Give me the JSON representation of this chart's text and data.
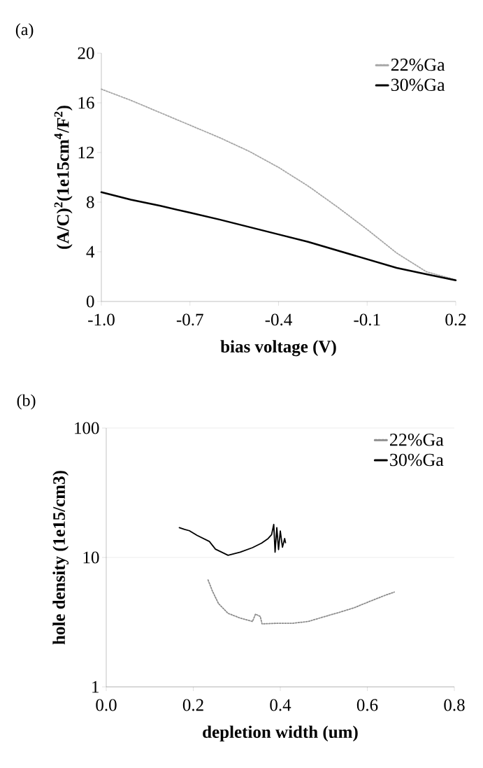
{
  "chart_data": [
    {
      "type": "line",
      "xlabel": "bias voltage (V)",
      "ylabel": "(A/C)$^{2}$(1e15cm$^{4}$/F$^{2}$)",
      "annotations": [
        "(a)"
      ],
      "xlim": [
        -1.0,
        0.2
      ],
      "xticks": [
        {
          "value": -1.0,
          "label": "-1.0"
        },
        {
          "value": -0.7,
          "label": "-0.7"
        },
        {
          "value": -0.4,
          "label": "-0.4"
        },
        {
          "value": -0.1,
          "label": "-0.1"
        },
        0.2
      ],
      "ylim": [
        0,
        20
      ],
      "yticks": [
        0,
        4,
        8,
        12,
        16,
        20
      ],
      "grid": false,
      "legend": "top right",
      "series": [
        {
          "name": "22%Ga",
          "color": "#a6a6a6",
          "line_style": "dotted",
          "x": [
            -1.0,
            -0.9,
            -0.8,
            -0.7,
            -0.6,
            -0.5,
            -0.4,
            -0.3,
            -0.2,
            -0.1,
            0.0,
            0.1,
            0.2
          ],
          "values": [
            17.1,
            16.2,
            15.2,
            14.2,
            13.2,
            12.1,
            10.8,
            9.3,
            7.6,
            5.8,
            3.9,
            2.4,
            1.75
          ]
        },
        {
          "name": "30%Ga",
          "color": "#000000",
          "line_style": "solid",
          "x": [
            -1.0,
            -0.9,
            -0.8,
            -0.7,
            -0.6,
            -0.5,
            -0.4,
            -0.3,
            -0.2,
            -0.1,
            0.0,
            0.1,
            0.2
          ],
          "values": [
            8.8,
            8.2,
            7.7,
            7.15,
            6.6,
            6.0,
            5.4,
            4.8,
            4.1,
            3.4,
            2.7,
            2.2,
            1.7
          ]
        }
      ]
    },
    {
      "type": "line",
      "xlabel": "depletion width (um)",
      "ylabel": "hole density (1e15/cm3)",
      "annotations": [
        "(b)"
      ],
      "xlim": [
        0,
        0.8
      ],
      "xticks": [
        {
          "value": 0,
          "label": "0.0"
        },
        0.2,
        0.4,
        0.6,
        0.8
      ],
      "ylim": [
        1,
        100
      ],
      "yticks": [
        1,
        10,
        100
      ],
      "log": true,
      "grid": "y",
      "legend": "top right",
      "series": [
        {
          "name": "22%Ga",
          "color": "#8c8c8c",
          "line_style": "dotted",
          "x": [
            0.234,
            0.244,
            0.258,
            0.28,
            0.308,
            0.336,
            0.343,
            0.354,
            0.358,
            0.393,
            0.428,
            0.464,
            0.499,
            0.535,
            0.57,
            0.605,
            0.641,
            0.662
          ],
          "values": [
            6.7,
            5.5,
            4.4,
            3.7,
            3.4,
            3.2,
            3.65,
            3.5,
            3.07,
            3.1,
            3.1,
            3.2,
            3.47,
            3.76,
            4.09,
            4.57,
            5.1,
            5.4
          ]
        },
        {
          "name": "30%Ga",
          "color": "#000000",
          "line_style": "solid",
          "x": [
            0.168,
            0.18,
            0.191,
            0.209,
            0.237,
            0.251,
            0.28,
            0.308,
            0.336,
            0.357,
            0.372,
            0.38,
            0.385,
            0.388,
            0.392,
            0.396,
            0.4,
            0.405,
            0.41,
            0.412
          ],
          "values": [
            17.0,
            16.5,
            16.1,
            14.8,
            13.3,
            11.6,
            10.4,
            11.0,
            11.9,
            12.9,
            14.0,
            15.0,
            18.0,
            11.0,
            17.0,
            11.5,
            16.0,
            12.0,
            14.0,
            13.0
          ]
        }
      ]
    }
  ]
}
